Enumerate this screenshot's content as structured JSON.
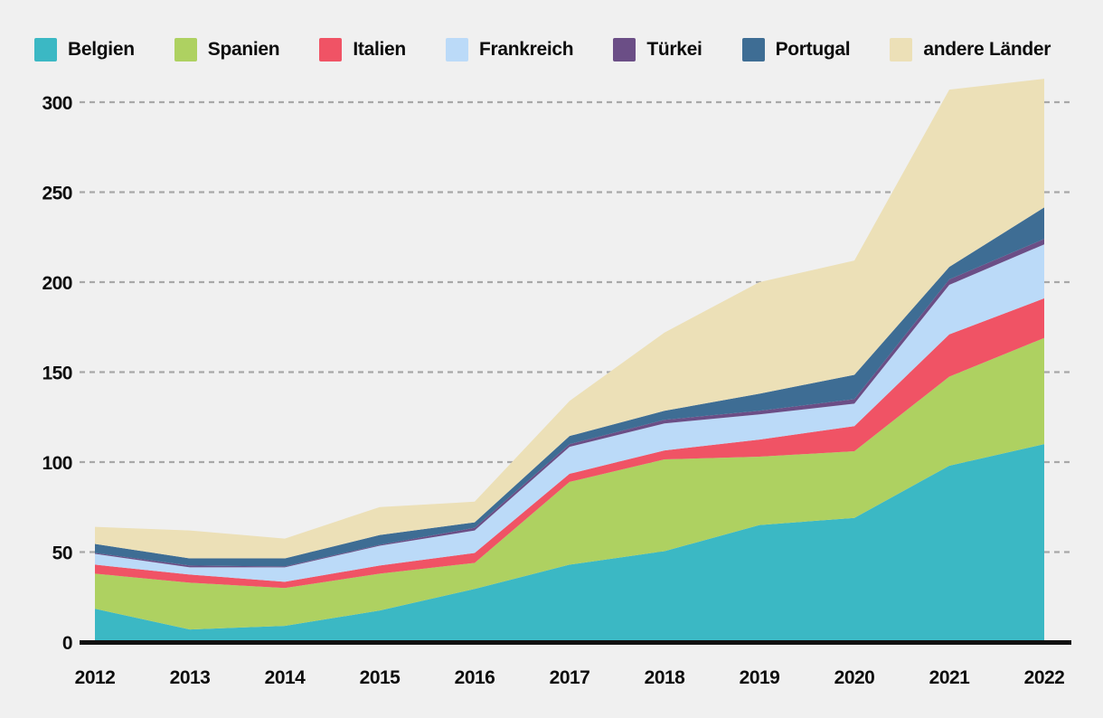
{
  "page": {
    "background_color": "#f0f0f0",
    "gridline_color": "#a8a8a8",
    "axis_color": "#111111",
    "text_color": "#0d0d0d"
  },
  "chart_data": {
    "type": "area",
    "stacked": true,
    "title": "",
    "xlabel": "",
    "ylabel": "",
    "x": [
      2012,
      2013,
      2014,
      2015,
      2016,
      2017,
      2018,
      2019,
      2020,
      2021,
      2022
    ],
    "x_tick_labels": [
      "2012",
      "2013",
      "2014",
      "2015",
      "2016",
      "2017",
      "2018",
      "2019",
      "2020",
      "2021",
      "2022"
    ],
    "yticks": [
      0,
      50,
      100,
      150,
      200,
      250,
      300
    ],
    "ytick_labels": [
      "0",
      "50",
      "100",
      "150",
      "200",
      "250",
      "300"
    ],
    "ylim": [
      0,
      315
    ],
    "grid": "dashed-horizontal",
    "legend_position": "top-left",
    "series": [
      {
        "name": "Belgien",
        "color": "#3bb8c4",
        "values": [
          18.5,
          7,
          9,
          17.5,
          29.5,
          43,
          50.5,
          65,
          69,
          98,
          110
        ]
      },
      {
        "name": "Spanien",
        "color": "#aed161",
        "values": [
          19.5,
          26,
          21,
          20.5,
          14.5,
          46,
          51,
          38,
          37,
          49.5,
          59
        ]
      },
      {
        "name": "Italien",
        "color": "#f05365",
        "values": [
          5,
          4.5,
          3.5,
          4.5,
          5.5,
          4.5,
          5,
          9.5,
          14,
          23.5,
          22
        ]
      },
      {
        "name": "Frankreich",
        "color": "#bbdaf8",
        "values": [
          6,
          4,
          8,
          11,
          12.5,
          15,
          15,
          14,
          12.5,
          27.5,
          30
        ]
      },
      {
        "name": "Türkei",
        "color": "#6b4e86",
        "values": [
          0.5,
          1,
          0.5,
          0.5,
          1.5,
          1.5,
          2,
          2,
          2.5,
          3,
          3
        ]
      },
      {
        "name": "Portugal",
        "color": "#3e6d94",
        "values": [
          5,
          4,
          4.5,
          5.5,
          3,
          4.5,
          5,
          9.5,
          13.5,
          7,
          17.5
        ]
      },
      {
        "name": "andere Länder",
        "color": "#ece0b7",
        "values": [
          9.5,
          15.5,
          11,
          15.5,
          11.5,
          19.5,
          43.5,
          62,
          63.5,
          98.5,
          71.5
        ]
      }
    ]
  }
}
